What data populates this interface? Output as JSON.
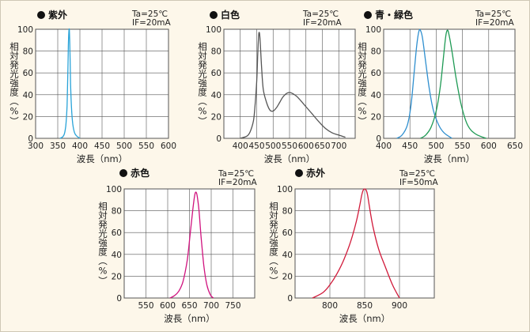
{
  "colors": {
    "background": "#fdf7ea",
    "grid": "#555555"
  },
  "chart_data": [
    {
      "type": "line",
      "title": "紫外",
      "conditions": [
        "Ta=25℃",
        "IF=20mA"
      ],
      "xlabel": "波長（nm）",
      "ylabel": "相対発光強度（%）",
      "xlim": [
        300,
        600
      ],
      "ylim": [
        0,
        100
      ],
      "xticks": [
        300,
        350,
        400,
        450,
        500,
        550,
        600
      ],
      "xtick_labels": [
        "300",
        "350",
        "400",
        "450",
        "500",
        "550",
        "600"
      ],
      "yticks": [
        0,
        20,
        40,
        60,
        80,
        100
      ],
      "series": [
        {
          "color": "#29a3d8",
          "x": [
            355,
            360,
            364,
            367,
            369,
            371,
            372,
            373,
            374,
            375,
            376,
            377,
            378,
            379,
            381,
            384,
            388,
            393,
            400
          ],
          "y": [
            0,
            1,
            3,
            8,
            15,
            30,
            45,
            65,
            85,
            97,
            100,
            90,
            70,
            50,
            28,
            13,
            5,
            2,
            0
          ]
        }
      ]
    },
    {
      "type": "line",
      "title": "白色",
      "conditions": [
        "Ta=25℃",
        "IF=20mA"
      ],
      "xlabel": "波長（nm）",
      "ylabel": "相対発光強度（%）",
      "xlim": [
        350,
        750
      ],
      "ylim": [
        0,
        100
      ],
      "xticks": [
        400,
        450,
        500,
        550,
        600,
        650,
        700
      ],
      "xtick_labels": [
        "400",
        "450",
        "500",
        "550",
        "600",
        "650",
        "700"
      ],
      "yticks": [
        0,
        20,
        40,
        60,
        80,
        100
      ],
      "series": [
        {
          "color": "#555555",
          "x": [
            400,
            420,
            430,
            440,
            445,
            450,
            453,
            455,
            457,
            460,
            465,
            470,
            480,
            490,
            500,
            510,
            520,
            530,
            540,
            550,
            560,
            570,
            580,
            600,
            620,
            640,
            660,
            680,
            700,
            720
          ],
          "y": [
            0,
            2,
            6,
            16,
            30,
            52,
            75,
            90,
            97,
            92,
            65,
            45,
            33,
            26,
            25,
            28,
            33,
            38,
            41,
            42,
            41,
            39,
            36,
            29,
            22,
            15,
            9,
            5,
            3,
            1
          ]
        }
      ]
    },
    {
      "type": "line",
      "title": "青・緑色",
      "conditions": [
        "Ta=25℃",
        "IF=20mA"
      ],
      "xlabel": "波長（nm）",
      "ylabel": "相対発光強度（%）",
      "xlim": [
        400,
        650
      ],
      "ylim": [
        0,
        100
      ],
      "xticks": [
        400,
        450,
        500,
        550,
        600,
        650
      ],
      "xtick_labels": [
        "400",
        "450",
        "500",
        "550",
        "600",
        "650"
      ],
      "yticks": [
        0,
        20,
        40,
        60,
        80,
        100
      ],
      "series": [
        {
          "color": "#2f8fcf",
          "x": [
            425,
            435,
            445,
            452,
            458,
            463,
            467,
            470,
            474,
            480,
            487,
            495,
            505,
            515,
            530
          ],
          "y": [
            0,
            3,
            12,
            30,
            60,
            85,
            98,
            99,
            92,
            70,
            45,
            25,
            12,
            5,
            0
          ]
        },
        {
          "color": "#1e9a54",
          "x": [
            470,
            480,
            490,
            500,
            508,
            514,
            518,
            521,
            524,
            530,
            538,
            548,
            560,
            575,
            595
          ],
          "y": [
            0,
            3,
            10,
            25,
            48,
            75,
            93,
            99,
            96,
            80,
            55,
            30,
            12,
            4,
            0
          ]
        }
      ]
    },
    {
      "type": "line",
      "title": "赤色",
      "conditions": [
        "Ta=25℃",
        "IF=20mA"
      ],
      "xlabel": "波長（nm）",
      "ylabel": "相対発光強度（%）",
      "xlim": [
        500,
        800
      ],
      "ylim": [
        0,
        100
      ],
      "xticks": [
        550,
        600,
        650,
        700,
        750
      ],
      "xtick_labels": [
        "550",
        "600",
        "650",
        "700",
        "750"
      ],
      "yticks": [
        0,
        20,
        40,
        60,
        80,
        100
      ],
      "series": [
        {
          "color": "#d0127e",
          "x": [
            605,
            615,
            625,
            635,
            645,
            652,
            658,
            662,
            665,
            668,
            672,
            677,
            683,
            690,
            698,
            705
          ],
          "y": [
            0,
            2,
            6,
            15,
            35,
            60,
            82,
            94,
            97,
            93,
            80,
            55,
            30,
            12,
            3,
            0
          ]
        }
      ]
    },
    {
      "type": "line",
      "title": "赤外",
      "conditions": [
        "Ta=25℃",
        "IF=50mA"
      ],
      "xlabel": "波長（nm）",
      "ylabel": "相対発光強度（%）",
      "xlim": [
        750,
        950
      ],
      "ylim": [
        0,
        100
      ],
      "xticks": [
        800,
        850,
        900
      ],
      "xtick_labels": [
        "800",
        "850",
        "900"
      ],
      "yticks": [
        0,
        20,
        40,
        60,
        80,
        100
      ],
      "series": [
        {
          "color": "#d11a3a",
          "x": [
            775,
            790,
            800,
            810,
            820,
            830,
            838,
            843,
            846,
            848,
            850,
            852,
            854,
            857,
            862,
            870,
            880,
            890,
            900
          ],
          "y": [
            0,
            5,
            12,
            22,
            35,
            52,
            70,
            85,
            95,
            99,
            100,
            99,
            95,
            83,
            65,
            45,
            28,
            12,
            0
          ]
        }
      ]
    }
  ]
}
